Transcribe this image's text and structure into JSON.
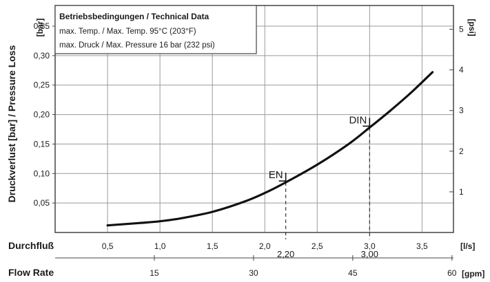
{
  "chart_data": {
    "type": "line",
    "ylabel": "Druckverlust [bar] / Pressure Loss",
    "y_unit": "[bar]",
    "y2_unit": "[psi]",
    "x_title_primary": "Durchfluß",
    "x_unit_primary": "[l/s]",
    "x_title_secondary": "Flow Rate",
    "x_unit_secondary": "[gpm]",
    "xlim": [
      0.0,
      3.8
    ],
    "ylim": [
      0.0,
      0.385
    ],
    "x_ticks": [
      {
        "value": 0.5,
        "label": "0,5"
      },
      {
        "value": 1.0,
        "label": "1,0"
      },
      {
        "value": 1.5,
        "label": "1,5"
      },
      {
        "value": 2.0,
        "label": "2,0"
      },
      {
        "value": 2.5,
        "label": "2,5"
      },
      {
        "value": 3.0,
        "label": "3,0"
      },
      {
        "value": 3.5,
        "label": "3,5"
      }
    ],
    "x_grid": [
      0.5,
      1.0,
      1.5,
      2.0,
      2.5,
      3.0,
      3.5
    ],
    "y_ticks": [
      {
        "value": 0.05,
        "label": "0,05"
      },
      {
        "value": 0.1,
        "label": "0,10"
      },
      {
        "value": 0.15,
        "label": "0,15"
      },
      {
        "value": 0.2,
        "label": "0,20"
      },
      {
        "value": 0.25,
        "label": "0,25"
      },
      {
        "value": 0.3,
        "label": "0,30"
      },
      {
        "value": 0.35,
        "label": "0,35"
      }
    ],
    "y_grid": [
      0.05,
      0.1,
      0.15,
      0.2,
      0.25,
      0.3,
      0.35
    ],
    "y2_ticks": [
      {
        "value": 1,
        "label": "1"
      },
      {
        "value": 2,
        "label": "2"
      },
      {
        "value": 3,
        "label": "3"
      },
      {
        "value": 4,
        "label": "4"
      },
      {
        "value": 5,
        "label": "5"
      }
    ],
    "gpm_ticks": [
      {
        "value": 15,
        "label": "15"
      },
      {
        "value": 30,
        "label": "30"
      },
      {
        "value": 45,
        "label": "45"
      },
      {
        "value": 60,
        "label": "60"
      }
    ],
    "series": [
      {
        "x": [
          0.5,
          0.8,
          1.0,
          1.2,
          1.5,
          1.8,
          2.0,
          2.2,
          2.5,
          2.8,
          3.0,
          3.2,
          3.4,
          3.6
        ],
        "y": [
          0.012,
          0.016,
          0.019,
          0.024,
          0.035,
          0.052,
          0.067,
          0.085,
          0.115,
          0.15,
          0.178,
          0.207,
          0.238,
          0.272
        ]
      }
    ],
    "markers": [
      {
        "name": "EN",
        "x": 2.2,
        "value_label": "2,20",
        "y": 0.085
      },
      {
        "name": "DIN",
        "x": 3.0,
        "value_label": "3,00",
        "y": 0.178
      }
    ],
    "legend_box": {
      "title": "Betriebsbedingungen / Technical Data",
      "lines": [
        "max. Temp. / Max. Temp. 95°C (203°F)",
        "max. Druck / Max. Pressure 16 bar (232 psi)"
      ],
      "placement": "top-left"
    },
    "colors": {
      "line": "#111111",
      "grid": "#9a9a9a",
      "frame": "#444444"
    }
  }
}
